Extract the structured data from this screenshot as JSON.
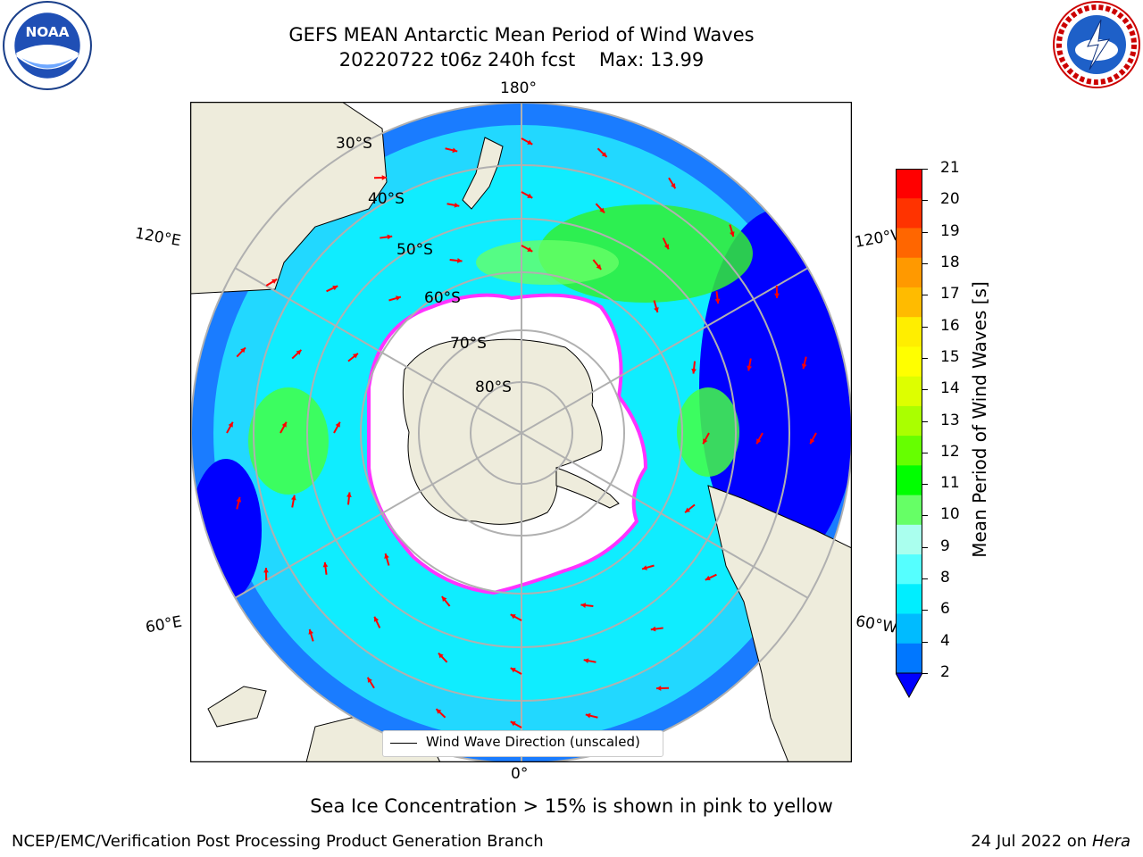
{
  "header": {
    "title_line1": "GEFS MEAN Antarctic Mean Period of Wind Waves",
    "title_line2": "20220722 t06z 240h fcst    Max: 13.99"
  },
  "map": {
    "projection": "south-polar-stereographic",
    "lon_labels": {
      "top": "180°",
      "bottom": "0°",
      "left_upper": "120°E",
      "left_lower": "60°E",
      "right_upper": "120°W",
      "right_lower": "60°W"
    },
    "lat_labels": [
      "30°S",
      "40°S",
      "50°S",
      "60°S",
      "70°S",
      "80°S"
    ],
    "legend_label": "Wind Wave Direction (unscaled)",
    "colors": {
      "land": "#eeecdc",
      "ocean_high": "#0000ff",
      "ocean_mid": "#00e5ff",
      "wave_period_green": "#33ff33",
      "ice_edge": "#ff44ff",
      "arrow": "#ff0000"
    }
  },
  "colorbar": {
    "title": "Mean Period of Wind Waves [s]",
    "ticks": [
      "21",
      "20",
      "19",
      "18",
      "17",
      "16",
      "15",
      "14",
      "13",
      "12",
      "11",
      "10",
      "9",
      "8",
      "6",
      "4",
      "2"
    ],
    "colors": [
      "#ff0000",
      "#ff3300",
      "#ff6600",
      "#ff9900",
      "#ffbb00",
      "#ffee00",
      "#ffff00",
      "#ddff00",
      "#aaff00",
      "#66ff00",
      "#00ff00",
      "#66ff66",
      "#aaffee",
      "#55ffff",
      "#00eeff",
      "#00bbff",
      "#0077ff",
      "#0000ff"
    ]
  },
  "footer": {
    "note": "Sea Ice Concentration > 15% is shown in pink to yellow",
    "credit_left": "NCEP/EMC/Verification Post Processing Product Generation Branch",
    "credit_right_prefix": "24 Jul 2022 on ",
    "credit_right_system": "Hera"
  },
  "logos": {
    "left": "noaa-logo",
    "right": "nws-logo"
  }
}
